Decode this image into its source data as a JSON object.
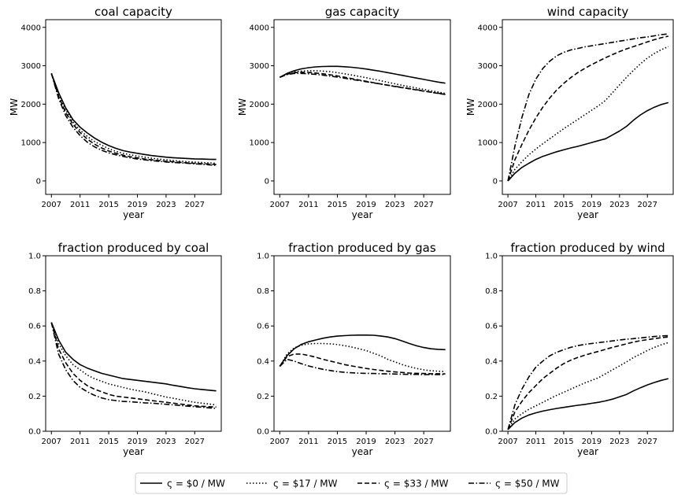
{
  "figure": {
    "legend_entries": [
      {
        "label": "ς = $0 / MW",
        "dash": "solid"
      },
      {
        "label": "ς = $17 / MW",
        "dash": "dotted"
      },
      {
        "label": "ς = $33 / MW",
        "dash": "dashed"
      },
      {
        "label": "ς = $50 / MW",
        "dash": "dashdot"
      }
    ],
    "legend_placement": "bottom-center",
    "line_color": "#000000"
  },
  "chart_data": [
    {
      "type": "line",
      "title": "coal capacity",
      "xlabel": "year",
      "ylabel": "MW",
      "xlim": [
        2006.2,
        2030.7
      ],
      "ylim": [
        -350,
        4200
      ],
      "xticks": [
        2007,
        2011,
        2015,
        2019,
        2023,
        2027
      ],
      "yticks": [
        0,
        1000,
        2000,
        3000,
        4000
      ],
      "grid": false,
      "x": [
        2007,
        2008,
        2009,
        2010,
        2011,
        2012,
        2013,
        2014,
        2015,
        2016,
        2017,
        2018,
        2019,
        2020,
        2021,
        2022,
        2023,
        2024,
        2025,
        2026,
        2027,
        2028,
        2029,
        2030
      ],
      "series": [
        {
          "name": "ς = $0 / MW",
          "values": [
            2800,
            2300,
            1900,
            1600,
            1400,
            1250,
            1120,
            1010,
            920,
            850,
            790,
            750,
            720,
            690,
            660,
            640,
            620,
            605,
            595,
            585,
            575,
            570,
            565,
            560
          ]
        },
        {
          "name": "ς = $17 / MW",
          "values": [
            2800,
            2250,
            1850,
            1540,
            1320,
            1160,
            1030,
            930,
            840,
            770,
            720,
            680,
            650,
            620,
            590,
            570,
            550,
            530,
            515,
            500,
            490,
            480,
            470,
            460
          ]
        },
        {
          "name": "ς = $33 / MW",
          "values": [
            2800,
            2200,
            1780,
            1480,
            1260,
            1090,
            960,
            860,
            780,
            720,
            670,
            630,
            600,
            570,
            550,
            530,
            510,
            500,
            485,
            470,
            460,
            450,
            440,
            430
          ]
        },
        {
          "name": "ς = $50 / MW",
          "values": [
            2800,
            2150,
            1700,
            1400,
            1180,
            1010,
            890,
            800,
            730,
            680,
            640,
            600,
            570,
            550,
            530,
            510,
            495,
            480,
            470,
            460,
            445,
            435,
            420,
            405
          ]
        }
      ]
    },
    {
      "type": "line",
      "title": "gas capacity",
      "xlabel": "year",
      "ylabel": "MW",
      "xlim": [
        2006.2,
        2030.7
      ],
      "ylim": [
        -350,
        4200
      ],
      "xticks": [
        2007,
        2011,
        2015,
        2019,
        2023,
        2027
      ],
      "yticks": [
        0,
        1000,
        2000,
        3000,
        4000
      ],
      "grid": false,
      "x": [
        2007,
        2008,
        2009,
        2010,
        2011,
        2012,
        2013,
        2014,
        2015,
        2016,
        2017,
        2018,
        2019,
        2020,
        2021,
        2022,
        2023,
        2024,
        2025,
        2026,
        2027,
        2028,
        2029,
        2030
      ],
      "series": [
        {
          "name": "ς = $0 / MW",
          "values": [
            2700,
            2800,
            2870,
            2920,
            2950,
            2970,
            2980,
            2985,
            2985,
            2975,
            2960,
            2940,
            2915,
            2885,
            2855,
            2820,
            2785,
            2750,
            2715,
            2680,
            2645,
            2610,
            2575,
            2545
          ]
        },
        {
          "name": "ς = $17 / MW",
          "values": [
            2700,
            2790,
            2840,
            2860,
            2870,
            2870,
            2860,
            2845,
            2820,
            2790,
            2760,
            2725,
            2690,
            2650,
            2610,
            2570,
            2530,
            2490,
            2455,
            2420,
            2385,
            2350,
            2315,
            2280
          ]
        },
        {
          "name": "ς = $33 / MW",
          "values": [
            2700,
            2780,
            2820,
            2830,
            2825,
            2810,
            2790,
            2765,
            2735,
            2700,
            2665,
            2630,
            2595,
            2560,
            2525,
            2490,
            2460,
            2430,
            2400,
            2370,
            2340,
            2310,
            2280,
            2250
          ]
        },
        {
          "name": "ς = $50 / MW",
          "values": [
            2700,
            2770,
            2800,
            2800,
            2790,
            2775,
            2755,
            2730,
            2705,
            2675,
            2645,
            2615,
            2585,
            2555,
            2525,
            2495,
            2465,
            2435,
            2405,
            2375,
            2345,
            2315,
            2285,
            2255
          ]
        }
      ]
    },
    {
      "type": "line",
      "title": "wind capacity",
      "xlabel": "year",
      "ylabel": "MW",
      "xlim": [
        2006.2,
        2030.7
      ],
      "ylim": [
        -350,
        4200
      ],
      "xticks": [
        2007,
        2011,
        2015,
        2019,
        2023,
        2027
      ],
      "yticks": [
        0,
        1000,
        2000,
        3000,
        4000
      ],
      "grid": false,
      "x": [
        2007,
        2008,
        2009,
        2010,
        2011,
        2012,
        2013,
        2014,
        2015,
        2016,
        2017,
        2018,
        2019,
        2020,
        2021,
        2022,
        2023,
        2024,
        2025,
        2026,
        2027,
        2028,
        2029,
        2030
      ],
      "series": [
        {
          "name": "ς = $0 / MW",
          "values": [
            0,
            200,
            350,
            460,
            560,
            640,
            700,
            760,
            810,
            860,
            900,
            950,
            1000,
            1050,
            1100,
            1200,
            1300,
            1420,
            1580,
            1720,
            1830,
            1920,
            1990,
            2040
          ]
        },
        {
          "name": "ς = $17 / MW",
          "values": [
            0,
            300,
            500,
            680,
            830,
            970,
            1100,
            1230,
            1360,
            1480,
            1600,
            1720,
            1840,
            1960,
            2100,
            2300,
            2500,
            2700,
            2880,
            3050,
            3200,
            3320,
            3420,
            3500
          ]
        },
        {
          "name": "ς = $33 / MW",
          "values": [
            0,
            550,
            950,
            1320,
            1640,
            1920,
            2160,
            2370,
            2540,
            2690,
            2820,
            2930,
            3030,
            3120,
            3210,
            3290,
            3370,
            3440,
            3500,
            3560,
            3620,
            3680,
            3730,
            3770
          ]
        },
        {
          "name": "ς = $50 / MW",
          "values": [
            0,
            900,
            1650,
            2250,
            2650,
            2930,
            3120,
            3260,
            3350,
            3410,
            3450,
            3490,
            3520,
            3550,
            3580,
            3610,
            3640,
            3670,
            3700,
            3730,
            3750,
            3780,
            3810,
            3830
          ]
        }
      ]
    },
    {
      "type": "line",
      "title": "fraction produced by coal",
      "xlabel": "year",
      "ylabel": "",
      "xlim": [
        2006.2,
        2030.7
      ],
      "ylim": [
        0,
        1.0
      ],
      "xticks": [
        2007,
        2011,
        2015,
        2019,
        2023,
        2027
      ],
      "yticks": [
        0.0,
        0.2,
        0.4,
        0.6,
        0.8,
        1.0
      ],
      "grid": false,
      "x": [
        2007,
        2008,
        2009,
        2010,
        2011,
        2012,
        2013,
        2014,
        2015,
        2016,
        2017,
        2018,
        2019,
        2020,
        2021,
        2022,
        2023,
        2024,
        2025,
        2026,
        2027,
        2028,
        2029,
        2030
      ],
      "series": [
        {
          "name": "ς = $0 / MW",
          "values": [
            0.62,
            0.52,
            0.45,
            0.41,
            0.38,
            0.36,
            0.345,
            0.33,
            0.32,
            0.31,
            0.3,
            0.295,
            0.29,
            0.285,
            0.28,
            0.275,
            0.27,
            0.262,
            0.255,
            0.248,
            0.242,
            0.238,
            0.234,
            0.23
          ]
        },
        {
          "name": "ς = $17 / MW",
          "values": [
            0.62,
            0.5,
            0.43,
            0.38,
            0.35,
            0.32,
            0.3,
            0.285,
            0.27,
            0.26,
            0.25,
            0.24,
            0.232,
            0.225,
            0.215,
            0.205,
            0.195,
            0.188,
            0.18,
            0.172,
            0.165,
            0.16,
            0.155,
            0.15
          ]
        },
        {
          "name": "ς = $33 / MW",
          "values": [
            0.62,
            0.47,
            0.39,
            0.33,
            0.29,
            0.26,
            0.24,
            0.225,
            0.21,
            0.2,
            0.195,
            0.19,
            0.185,
            0.18,
            0.175,
            0.17,
            0.165,
            0.16,
            0.155,
            0.15,
            0.145,
            0.142,
            0.14,
            0.138
          ]
        },
        {
          "name": "ς = $50 / MW",
          "values": [
            0.62,
            0.44,
            0.35,
            0.29,
            0.25,
            0.225,
            0.205,
            0.19,
            0.18,
            0.175,
            0.17,
            0.168,
            0.165,
            0.162,
            0.16,
            0.157,
            0.154,
            0.15,
            0.147,
            0.143,
            0.14,
            0.137,
            0.133,
            0.13
          ]
        }
      ]
    },
    {
      "type": "line",
      "title": "fraction produced by gas",
      "xlabel": "year",
      "ylabel": "",
      "xlim": [
        2006.2,
        2030.7
      ],
      "ylim": [
        0,
        1.0
      ],
      "xticks": [
        2007,
        2011,
        2015,
        2019,
        2023,
        2027
      ],
      "yticks": [
        0.0,
        0.2,
        0.4,
        0.6,
        0.8,
        1.0
      ],
      "grid": false,
      "x": [
        2007,
        2008,
        2009,
        2010,
        2011,
        2012,
        2013,
        2014,
        2015,
        2016,
        2017,
        2018,
        2019,
        2020,
        2021,
        2022,
        2023,
        2024,
        2025,
        2026,
        2027,
        2028,
        2029,
        2030
      ],
      "series": [
        {
          "name": "ς = $0 / MW",
          "values": [
            0.37,
            0.43,
            0.47,
            0.495,
            0.51,
            0.52,
            0.53,
            0.537,
            0.542,
            0.545,
            0.547,
            0.548,
            0.548,
            0.547,
            0.543,
            0.537,
            0.528,
            0.515,
            0.5,
            0.487,
            0.477,
            0.47,
            0.467,
            0.465
          ]
        },
        {
          "name": "ς = $17 / MW",
          "values": [
            0.37,
            0.44,
            0.475,
            0.49,
            0.498,
            0.5,
            0.5,
            0.498,
            0.494,
            0.488,
            0.48,
            0.47,
            0.46,
            0.445,
            0.43,
            0.41,
            0.395,
            0.38,
            0.368,
            0.358,
            0.35,
            0.345,
            0.342,
            0.34
          ]
        },
        {
          "name": "ς = $33 / MW",
          "values": [
            0.37,
            0.425,
            0.44,
            0.44,
            0.432,
            0.422,
            0.41,
            0.4,
            0.39,
            0.38,
            0.372,
            0.365,
            0.358,
            0.352,
            0.347,
            0.342,
            0.338,
            0.335,
            0.332,
            0.33,
            0.329,
            0.328,
            0.328,
            0.327
          ]
        },
        {
          "name": "ς = $50 / MW",
          "values": [
            0.37,
            0.41,
            0.4,
            0.385,
            0.372,
            0.362,
            0.353,
            0.346,
            0.34,
            0.336,
            0.333,
            0.331,
            0.33,
            0.329,
            0.328,
            0.327,
            0.326,
            0.325,
            0.324,
            0.324,
            0.323,
            0.323,
            0.323,
            0.323
          ]
        }
      ]
    },
    {
      "type": "line",
      "title": "fraction produced by wind",
      "xlabel": "year",
      "ylabel": "",
      "xlim": [
        2006.2,
        2030.7
      ],
      "ylim": [
        0,
        1.0
      ],
      "xticks": [
        2007,
        2011,
        2015,
        2019,
        2023,
        2027
      ],
      "yticks": [
        0.0,
        0.2,
        0.4,
        0.6,
        0.8,
        1.0
      ],
      "grid": false,
      "x": [
        2007,
        2008,
        2009,
        2010,
        2011,
        2012,
        2013,
        2014,
        2015,
        2016,
        2017,
        2018,
        2019,
        2020,
        2021,
        2022,
        2023,
        2024,
        2025,
        2026,
        2027,
        2028,
        2029,
        2030
      ],
      "series": [
        {
          "name": "ς = $0 / MW",
          "values": [
            0.01,
            0.05,
            0.075,
            0.093,
            0.105,
            0.115,
            0.123,
            0.13,
            0.136,
            0.142,
            0.148,
            0.153,
            0.159,
            0.165,
            0.173,
            0.183,
            0.196,
            0.21,
            0.23,
            0.248,
            0.264,
            0.278,
            0.29,
            0.3
          ]
        },
        {
          "name": "ς = $17 / MW",
          "values": [
            0.01,
            0.07,
            0.1,
            0.125,
            0.145,
            0.165,
            0.185,
            0.205,
            0.222,
            0.24,
            0.258,
            0.275,
            0.29,
            0.305,
            0.328,
            0.35,
            0.372,
            0.395,
            0.42,
            0.44,
            0.46,
            0.478,
            0.493,
            0.505
          ]
        },
        {
          "name": "ς = $33 / MW",
          "values": [
            0.01,
            0.11,
            0.17,
            0.22,
            0.26,
            0.3,
            0.33,
            0.36,
            0.385,
            0.405,
            0.42,
            0.433,
            0.445,
            0.455,
            0.467,
            0.478,
            0.488,
            0.498,
            0.508,
            0.516,
            0.522,
            0.528,
            0.533,
            0.537
          ]
        },
        {
          "name": "ς = $50 / MW",
          "values": [
            0.01,
            0.15,
            0.24,
            0.31,
            0.365,
            0.4,
            0.43,
            0.45,
            0.465,
            0.478,
            0.488,
            0.495,
            0.5,
            0.505,
            0.51,
            0.515,
            0.52,
            0.524,
            0.528,
            0.532,
            0.536,
            0.54,
            0.543,
            0.545
          ]
        }
      ]
    }
  ]
}
